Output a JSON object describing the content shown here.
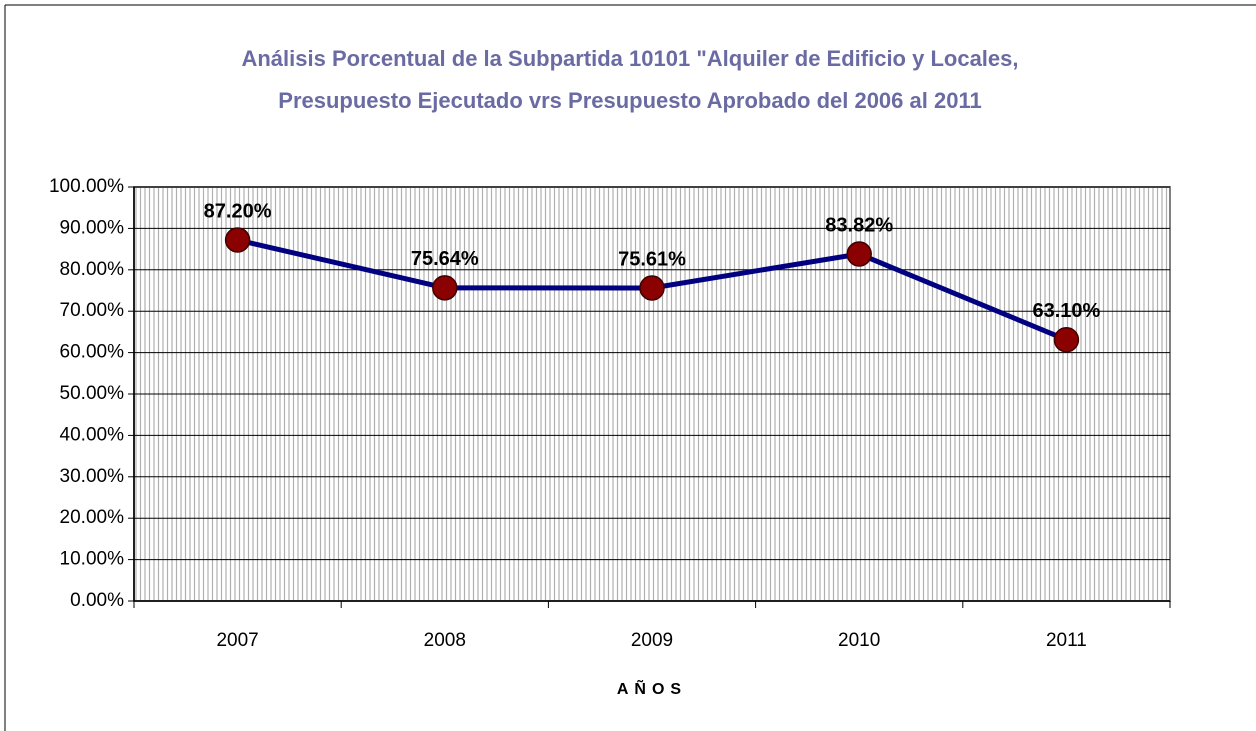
{
  "chart_data": {
    "type": "line",
    "title": [
      "Análisis Porcentual de la Subpartida 10101 \"Alquiler de Edificio y Locales,",
      "Presupuesto Ejecutado vrs Presupuesto Aprobado del 2006 al 2011"
    ],
    "x_label": "AÑOS",
    "categories": [
      "2007",
      "2008",
      "2009",
      "2010",
      "2011"
    ],
    "values": [
      87.2,
      75.64,
      75.61,
      83.82,
      63.1
    ],
    "value_labels": [
      "87.20%",
      "75.64%",
      "75.61%",
      "83.82%",
      "63.10%"
    ],
    "color": "#000080",
    "marker_color": "#8b0000",
    "ylim": [
      0,
      100
    ],
    "yticks": [
      {
        "value": 0,
        "label": "0.00%"
      },
      {
        "value": 10,
        "label": "10.00%"
      },
      {
        "value": 20,
        "label": "20.00%"
      },
      {
        "value": 30,
        "label": "30.00%"
      },
      {
        "value": 40,
        "label": "40.00%"
      },
      {
        "value": 50,
        "label": "50.00%"
      },
      {
        "value": 60,
        "label": "60.00%"
      },
      {
        "value": 70,
        "label": "70.00%"
      },
      {
        "value": 80,
        "label": "80.00%"
      },
      {
        "value": 90,
        "label": "90.00%"
      },
      {
        "value": 100,
        "label": "100.00%"
      }
    ],
    "grid": true
  }
}
